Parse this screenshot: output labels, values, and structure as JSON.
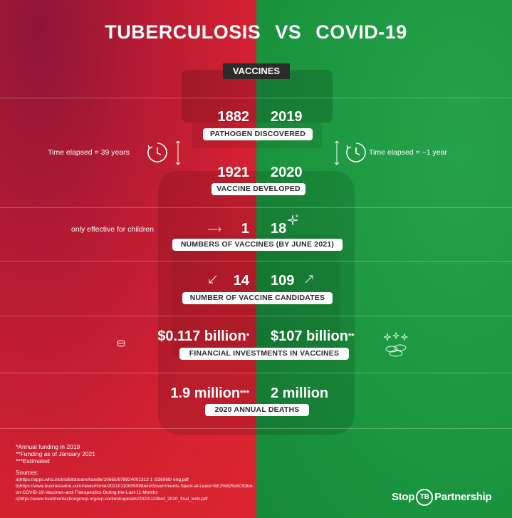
{
  "title": {
    "left": "TUBERCULOSIS",
    "vs": "VS",
    "right": "COVID-19"
  },
  "section_tag": "VACCINES",
  "rows": {
    "discovered": {
      "tb": "1882",
      "covid": "2019",
      "label": "PATHOGEN DISCOVERED"
    },
    "developed": {
      "tb": "1921",
      "covid": "2020",
      "label": "VACCINE DEVELOPED"
    },
    "elapsed": {
      "tb": "Time elapsed = 39 years",
      "covid": "Time elapsed = ~1 year"
    },
    "number": {
      "tb": "1",
      "covid": "18",
      "label": "NUMBERS OF VACCINES  (BY JUNE 2021)",
      "note": "only effective for children"
    },
    "candidates": {
      "tb": "14",
      "covid": "109",
      "label": "NUMBER OF VACCINE CANDIDATES"
    },
    "investment": {
      "tb": "$0.117 billion",
      "tb_mark": "*",
      "covid": "$107 billion",
      "covid_mark": "**",
      "label": "FINANCIAL INVESTMENTS IN VACCINES"
    },
    "deaths": {
      "tb": "1.9 million",
      "tb_mark": "***",
      "covid": "2 million",
      "label": "2020 ANNUAL DEATHS"
    }
  },
  "footnotes": [
    "*Annual funding in 2019",
    "**Funding as of January 2021",
    "***Estimated"
  ],
  "sources_label": "Sources:",
  "sources": [
    "a)https://apps.who.int/iris/bitstream/handle/10665/978924001313 1 /336069/ eng.pdf",
    "b)https://www.businesswire.com/news/home/20210110005098/en/Governments-Spent-at-Least-%E2%82%AC93bn-",
    "on-COVID-19-Vaccines-and-Therapeutics-During-the-Last-11-Months",
    "c)https://www.treatmentactiongroup.org/wp-content/uploads/2020/12/tbrd_2020_final_web.pdf"
  ],
  "logo": {
    "pre": "Stop",
    "mid": "TB",
    "post": "Partnership"
  },
  "icons": [
    "clock-icon",
    "arrow-down-icon",
    "arrow-right-icon",
    "sparkle-icon",
    "arrow-down-left-icon",
    "arrow-up-right-icon",
    "coin-icon",
    "money-pile-icon"
  ],
  "colors": {
    "tb_red": "#d42131",
    "covid_green": "#1c973f",
    "tag_dark": "#2b2b2b"
  }
}
